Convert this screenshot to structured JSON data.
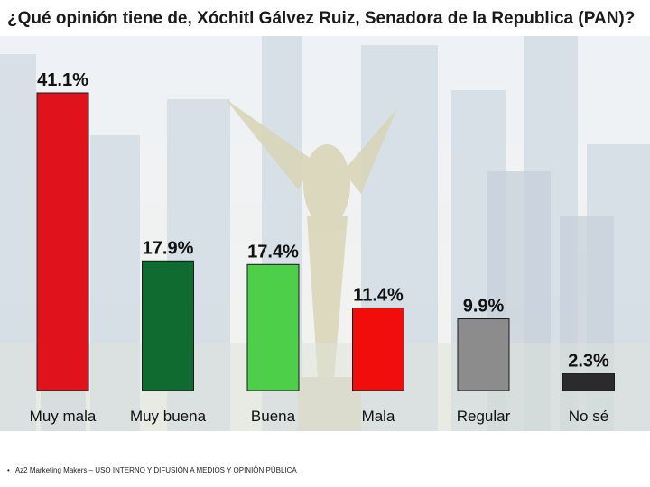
{
  "title": "¿Qué opinión tiene de, Xóchitl Gálvez Ruiz, Senadora de la Republica (PAN)?",
  "footer": "Az2 Marketing Makers – USO INTERNO Y DIFUSIÓN A MEDIOS Y OPINIÓN PÚBLICA",
  "chart_data": {
    "type": "bar",
    "categories": [
      "Muy mala",
      "Muy buena",
      "Buena",
      "Mala",
      "Regular",
      "No sé"
    ],
    "values": [
      41.1,
      17.9,
      17.4,
      11.4,
      9.9,
      2.3
    ],
    "data_labels": [
      "41.1%",
      "17.9%",
      "17.4%",
      "11.4%",
      "9.9%",
      "2.3%"
    ],
    "colors": [
      "#e0121b",
      "#0f6b30",
      "#4ecf4a",
      "#f20d0d",
      "#8c8c8c",
      "#2b2b2b"
    ],
    "ylim": [
      0,
      41.1
    ],
    "grid": false,
    "legend": "none"
  }
}
